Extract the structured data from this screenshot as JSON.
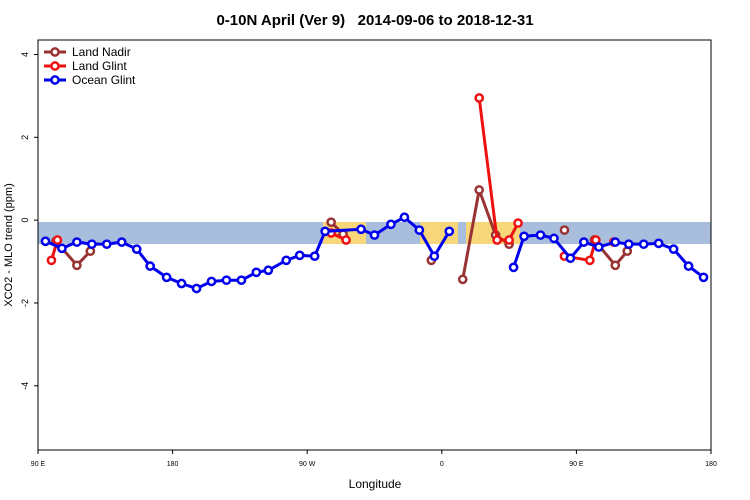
{
  "chart_data": {
    "type": "line",
    "title": "0-10N April (Ver 9)   2014-09-06 to 2018-12-31",
    "xlabel": "Longitude",
    "ylabel": "XCO2 - MLO trend (ppm)",
    "xlim": [
      90,
      540
    ],
    "ylim": [
      -5.55,
      4.35
    ],
    "xticks": [
      {
        "value": 90,
        "label": "90 E"
      },
      180,
      {
        "value": 270,
        "label": "90 W"
      },
      {
        "value": 360,
        "label": "0"
      },
      {
        "value": 450,
        "label": "90 E"
      },
      {
        "value": 540,
        "label": "180"
      }
    ],
    "yticks": [
      -4,
      -2,
      0,
      2,
      4
    ],
    "legend": "top-left",
    "series": [
      {
        "name": "Land Nadir",
        "color": "#993333",
        "x": [
          102,
          116,
          125,
          200,
          286,
          294,
          320,
          353,
          357,
          374,
          385,
          396,
          405,
          420,
          442,
          450,
          462,
          476,
          484
        ],
        "values": [
          -0.51,
          -1.09,
          -0.75,
          null,
          -0.05,
          -0.34,
          null,
          -0.97,
          null,
          -1.43,
          0.73,
          -0.36,
          -0.58,
          null,
          -0.24,
          null,
          -0.48,
          -1.09,
          -0.75
        ]
      },
      {
        "name": "Land Glint",
        "color": "#ee1111",
        "x": [
          99,
          103,
          200,
          286,
          296,
          340,
          385,
          397,
          405,
          411,
          430,
          442,
          459,
          463,
          470,
          475
        ],
        "values": [
          -0.97,
          -0.48,
          null,
          -0.31,
          -0.48,
          null,
          2.95,
          -0.48,
          -0.48,
          -0.07,
          null,
          -0.87,
          -0.97,
          -0.48,
          null,
          -0.53
        ]
      },
      {
        "name": "Ocean Glint",
        "color": "#0000ee",
        "x": [
          95,
          106,
          116,
          126,
          136,
          146,
          156,
          165,
          176,
          186,
          196,
          206,
          216,
          226,
          236,
          244,
          256,
          265,
          275,
          282,
          306,
          315,
          326,
          335,
          345,
          355,
          365,
          386,
          408,
          415,
          426,
          435,
          446,
          455,
          465,
          476,
          485,
          495,
          505,
          515,
          525,
          535
        ],
        "values": [
          -0.51,
          -0.68,
          -0.53,
          -0.58,
          -0.58,
          -0.53,
          -0.7,
          -1.11,
          -1.38,
          -1.53,
          -1.65,
          -1.48,
          -1.45,
          -1.45,
          -1.26,
          -1.21,
          -0.97,
          -0.85,
          -0.87,
          -0.27,
          -0.22,
          -0.36,
          -0.1,
          0.07,
          -0.24,
          -0.87,
          -0.27,
          null,
          -1.14,
          -0.39,
          -0.36,
          -0.44,
          -0.92,
          -0.53,
          -0.65,
          -0.53,
          -0.58,
          -0.58,
          -0.56,
          -0.7,
          -1.11,
          -1.38
        ]
      }
    ]
  }
}
